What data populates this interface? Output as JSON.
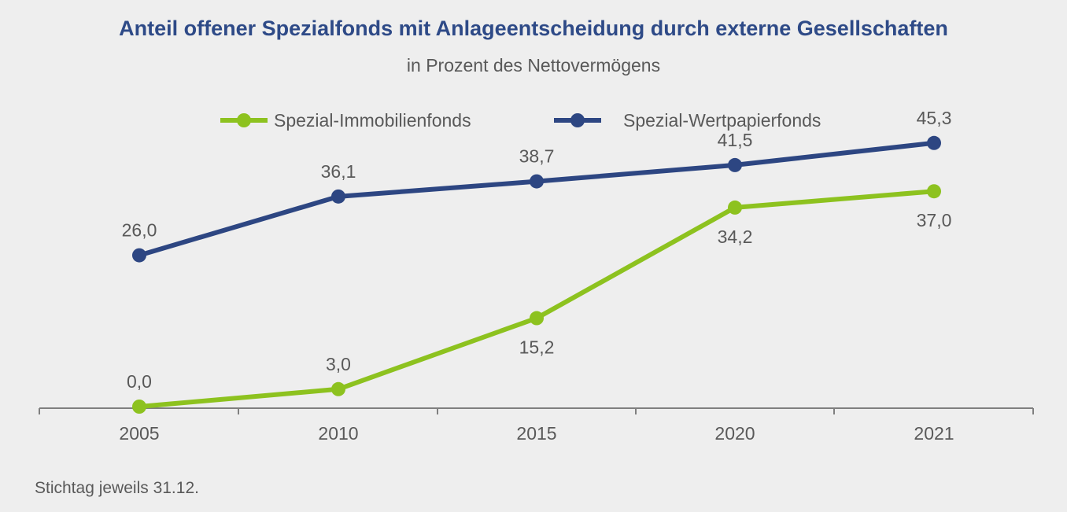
{
  "chart_data": {
    "type": "line",
    "title": "Anteil offener Spezialfonds mit Anlageentscheidung durch externe Gesellschaften",
    "subtitle": "in Prozent des Nettovermögens",
    "categories": [
      "2005",
      "2010",
      "2015",
      "2020",
      "2021"
    ],
    "series": [
      {
        "name": "Spezial-Immobilienfonds",
        "color": "#8dc21f",
        "values": [
          0.0,
          3.0,
          15.2,
          34.2,
          37.0
        ],
        "labels": [
          "0,0",
          "3,0",
          "15,2",
          "34,2",
          "37,0"
        ],
        "label_positions": [
          "above",
          "above",
          "below",
          "below",
          "below"
        ]
      },
      {
        "name": "Spezial-Wertpapierfonds",
        "color": "#2d4682",
        "values": [
          26.0,
          36.1,
          38.7,
          41.5,
          45.3
        ],
        "labels": [
          "26,0",
          "36,1",
          "38,7",
          "41,5",
          "45,3"
        ],
        "label_positions": [
          "above",
          "above",
          "above",
          "above",
          "above"
        ]
      }
    ],
    "ylim": [
      0,
      52
    ],
    "grid": false,
    "legend_position": "top-center",
    "footnote": "Stichtag jeweils 31.12."
  }
}
